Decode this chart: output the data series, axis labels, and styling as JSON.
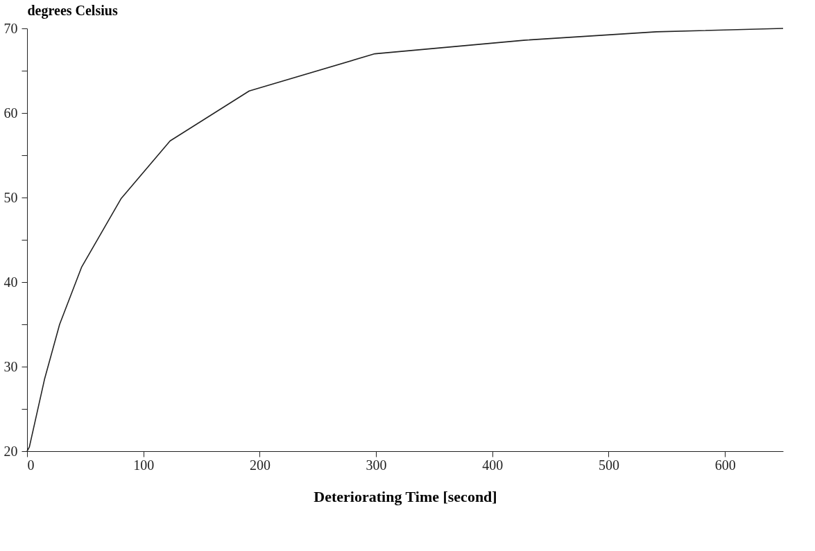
{
  "chart_data": {
    "type": "line",
    "ylabel": "degrees Celsius",
    "xlabel": "Deteriorating Time [second]",
    "x": [
      0,
      2,
      15,
      28,
      47,
      81,
      123,
      191,
      299,
      427,
      541,
      650
    ],
    "series": [
      {
        "color": "#222222",
        "values": [
          20,
          20.5,
          28.5,
          35,
          41.8,
          49.9,
          56.7,
          62.6,
          67,
          68.6,
          69.6,
          70
        ]
      }
    ],
    "xlim": [
      0,
      650
    ],
    "xticks": [
      0,
      100,
      200,
      300,
      400,
      500,
      600
    ],
    "ylim": [
      20,
      70
    ],
    "yticks": [
      20,
      {
        "value": 25,
        "label": null
      },
      30,
      {
        "value": 35,
        "label": null
      },
      40,
      {
        "value": 45,
        "label": null
      },
      50,
      {
        "value": 55,
        "label": null
      },
      60,
      {
        "value": 65,
        "label": null
      },
      70
    ],
    "grid": false,
    "marker": "none",
    "line_style": "solid"
  }
}
